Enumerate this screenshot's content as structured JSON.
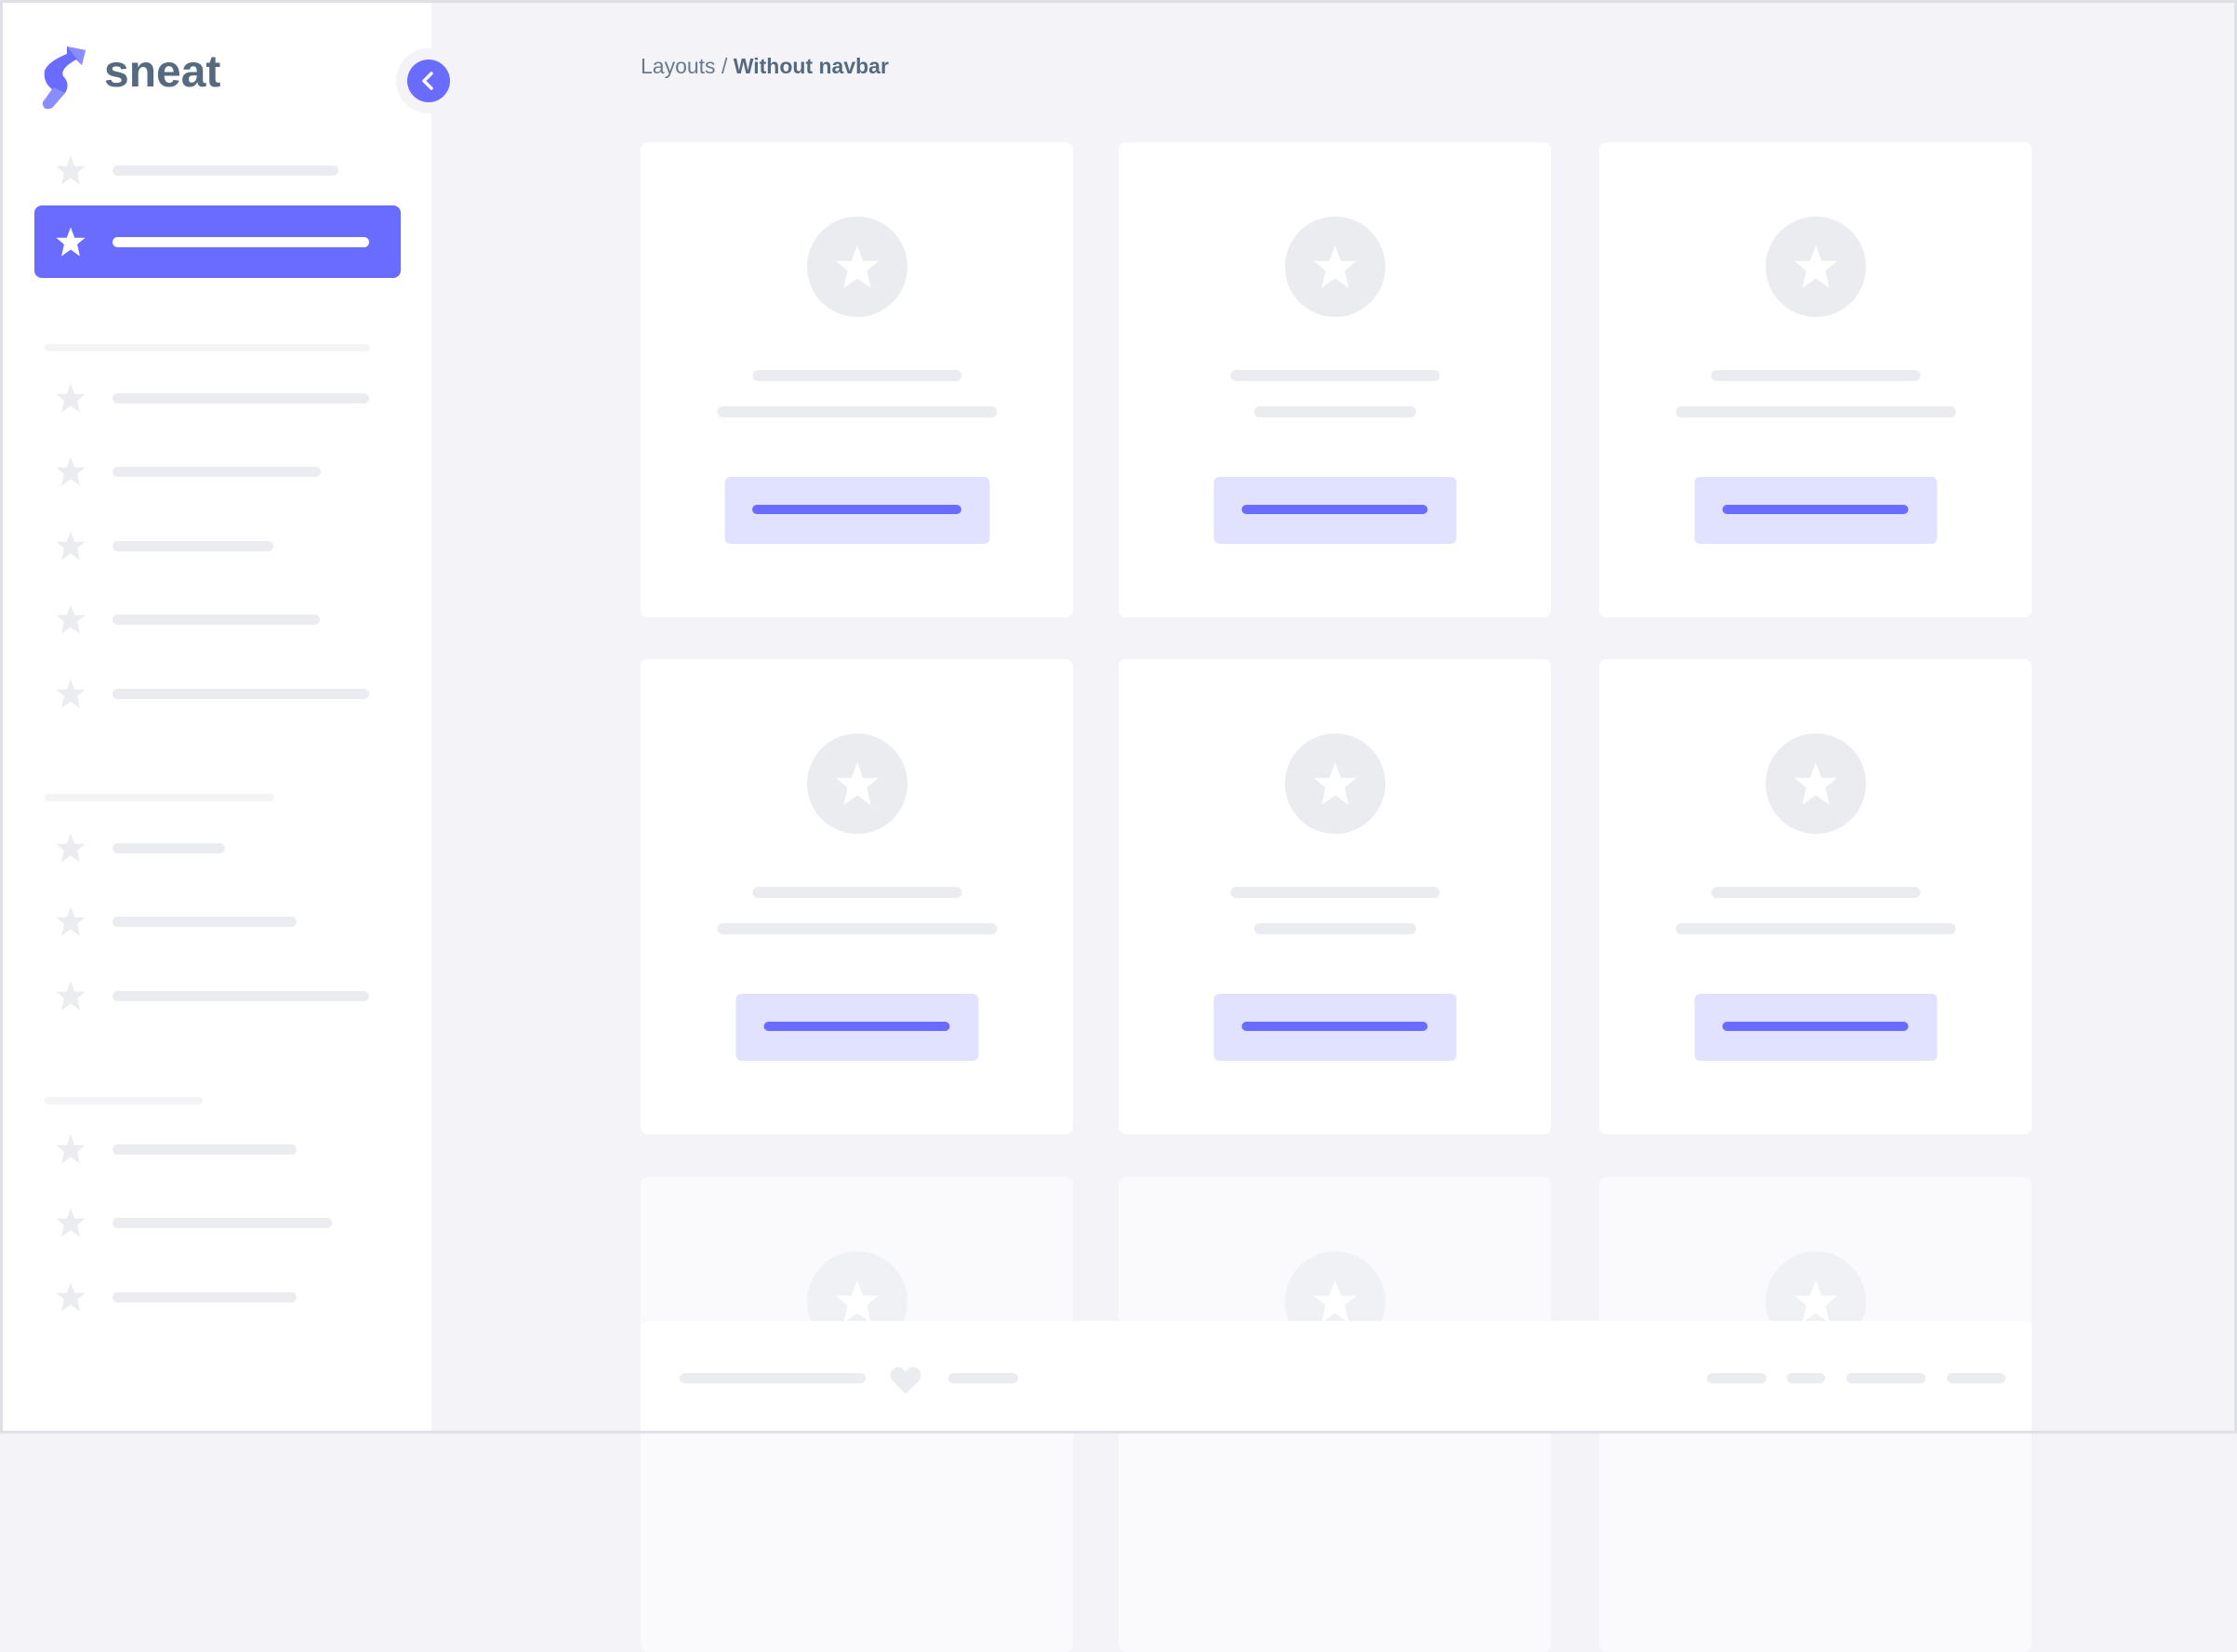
{
  "app": {
    "brand": "sneat"
  },
  "breadcrumb": {
    "parent": "Layouts",
    "separator": " / ",
    "current": "Without navbar"
  },
  "colors": {
    "accent": "#696cff",
    "accent_light": "#e1e2ff",
    "placeholder": "#ebecef",
    "background": "#f4f4f8",
    "text": "#566a7f"
  },
  "icons": {
    "logo": "sneat-logo",
    "toggle": "chevron-left-icon",
    "menu_item": "star-icon",
    "card": "star-icon",
    "footer": "heart-icon"
  },
  "sidebar": {
    "active_index": 1,
    "item_count": 13,
    "sections": 3
  },
  "cards": {
    "rows": 3,
    "columns": 3
  }
}
